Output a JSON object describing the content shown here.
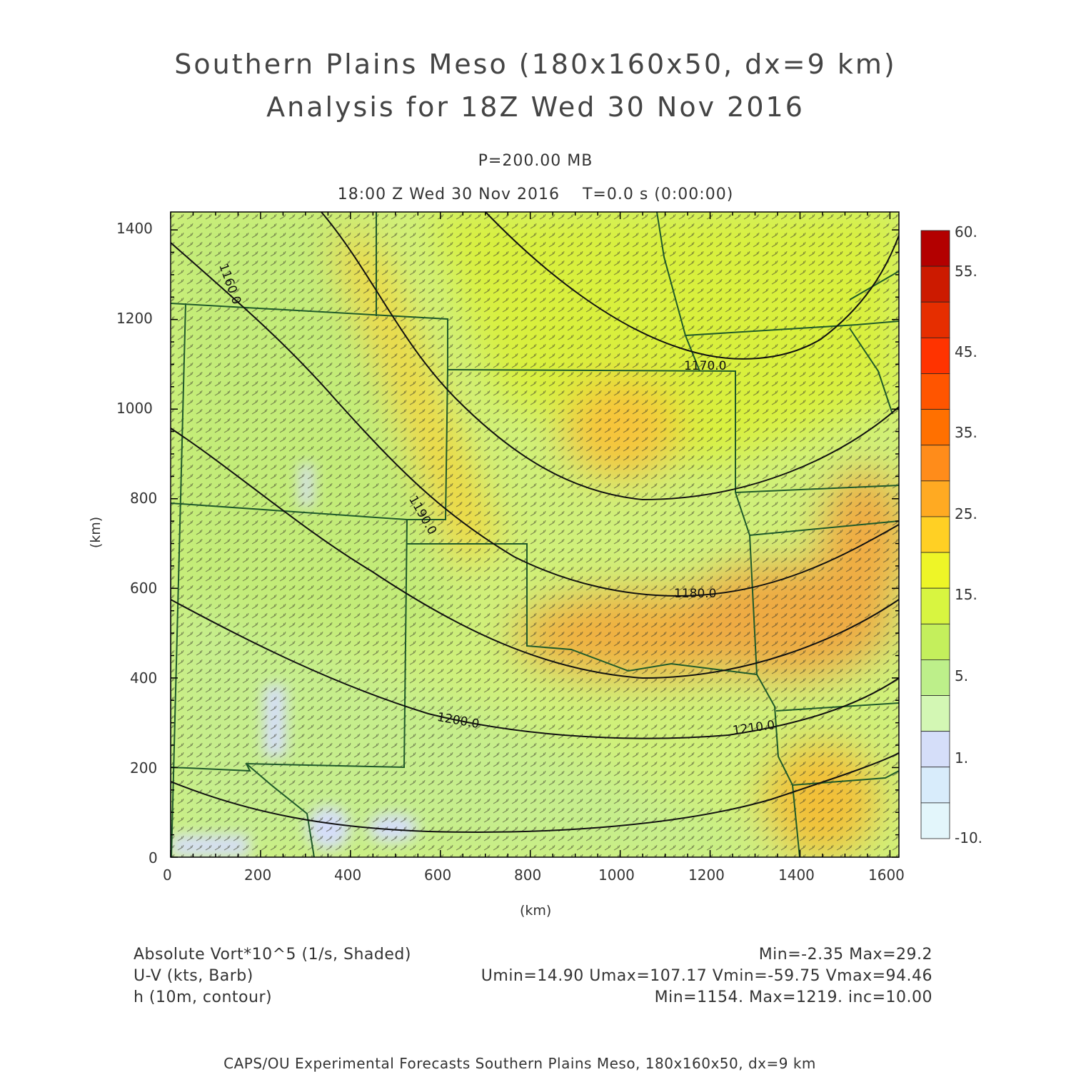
{
  "title": {
    "line1": "Southern Plains Meso (180x160x50, dx=9 km)",
    "line2": "Analysis for 18Z Wed 30 Nov 2016"
  },
  "subtitle": {
    "level": "P=200.00 MB",
    "time": "18:00 Z Wed 30 Nov 2016    T=0.0 s (0:00:00)"
  },
  "axes": {
    "x_label": "(km)",
    "y_label": "(km)",
    "x_ticks": [
      "0",
      "200",
      "400",
      "600",
      "800",
      "1000",
      "1200",
      "1400",
      "1600"
    ],
    "y_ticks": [
      "0",
      "200",
      "400",
      "600",
      "800",
      "1000",
      "1200",
      "1400"
    ]
  },
  "colorbar": {
    "labels": [
      "60.",
      "55.",
      "45.",
      "35.",
      "25.",
      "15.",
      "5.",
      "1.",
      "-10."
    ],
    "colors": [
      "#b30000",
      "#cc1a00",
      "#e62e00",
      "#ff3300",
      "#ff5500",
      "#ff7000",
      "#ff8c1a",
      "#ffaa22",
      "#ffd024",
      "#eef527",
      "#d8f540",
      "#c4ef5c",
      "#bdef8a",
      "#d3f7b4",
      "#d5def9",
      "#d8ecfb",
      "#e3f6fb"
    ]
  },
  "contour_labels": [
    "1160.0",
    "1170.0",
    "1180.0",
    "1190.0",
    "1200.0",
    "1210.0"
  ],
  "legend": {
    "vort_label": "Absolute Vort*10^5 (1/s, Shaded)",
    "vort_stats": "Min=-2.35 Max=29.2",
    "wind_label": "U-V (kts, Barb)",
    "wind_stats": "Umin=14.90 Umax=107.17 Vmin=-59.75 Vmax=94.46",
    "height_label": "h (10m, contour)",
    "height_stats": "Min=1154. Max=1219. inc=10.00"
  },
  "footer": "CAPS/OU Experimental Forecasts  Southern Plains Meso, 180x160x50, dx=9 km"
}
